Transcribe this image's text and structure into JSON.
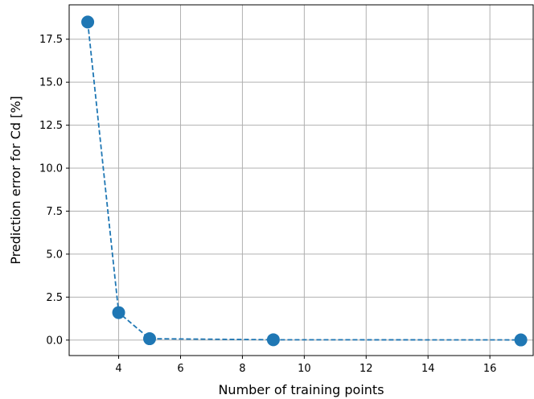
{
  "chart_data": {
    "type": "line",
    "title": "",
    "xlabel": "Number of training points",
    "ylabel": "Prediction error for Cd [%]",
    "xlim": [
      2.4,
      17.4
    ],
    "ylim": [
      -0.9,
      19.5
    ],
    "xticks": [
      4,
      6,
      8,
      10,
      12,
      14,
      16
    ],
    "xtick_labels": [
      "4",
      "6",
      "8",
      "10",
      "12",
      "14",
      "16"
    ],
    "yticks": [
      0.0,
      2.5,
      5.0,
      7.5,
      10.0,
      12.5,
      15.0,
      17.5
    ],
    "ytick_labels": [
      "0.0",
      "2.5",
      "5.0",
      "7.5",
      "10.0",
      "12.5",
      "15.0",
      "17.5"
    ],
    "grid": true,
    "series": [
      {
        "name": "",
        "color": "#1f77b4",
        "line_style": "dashed",
        "marker": "circle",
        "x": [
          3,
          4,
          5,
          9,
          17
        ],
        "y": [
          18.5,
          1.6,
          0.08,
          0.02,
          0.01
        ]
      }
    ]
  }
}
